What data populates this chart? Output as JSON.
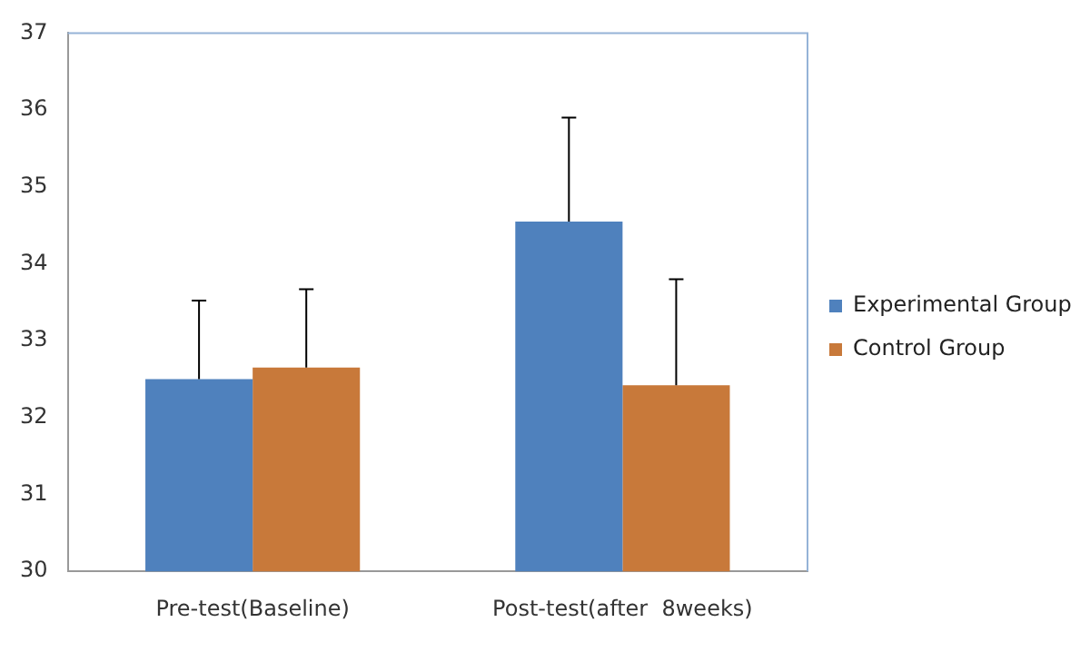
{
  "chart_data": {
    "type": "bar",
    "categories": [
      "Pre-test(Baseline)",
      "Post-test(after  8weeks)"
    ],
    "series": [
      {
        "name": "Experimental Group",
        "color": "#4f81bd",
        "values": [
          32.5,
          34.55
        ],
        "errors": [
          [
            32.5,
            33.52
          ],
          [
            34.55,
            35.9
          ]
        ]
      },
      {
        "name": "Control Group",
        "color": "#c8793a",
        "values": [
          32.65,
          32.42
        ],
        "errors": [
          [
            32.65,
            33.67
          ],
          [
            32.42,
            33.8
          ]
        ]
      }
    ],
    "ylim": [
      30,
      37
    ],
    "yticks": [
      30,
      31,
      32,
      33,
      34,
      35,
      36,
      37
    ],
    "grid": false,
    "legend": "right"
  }
}
